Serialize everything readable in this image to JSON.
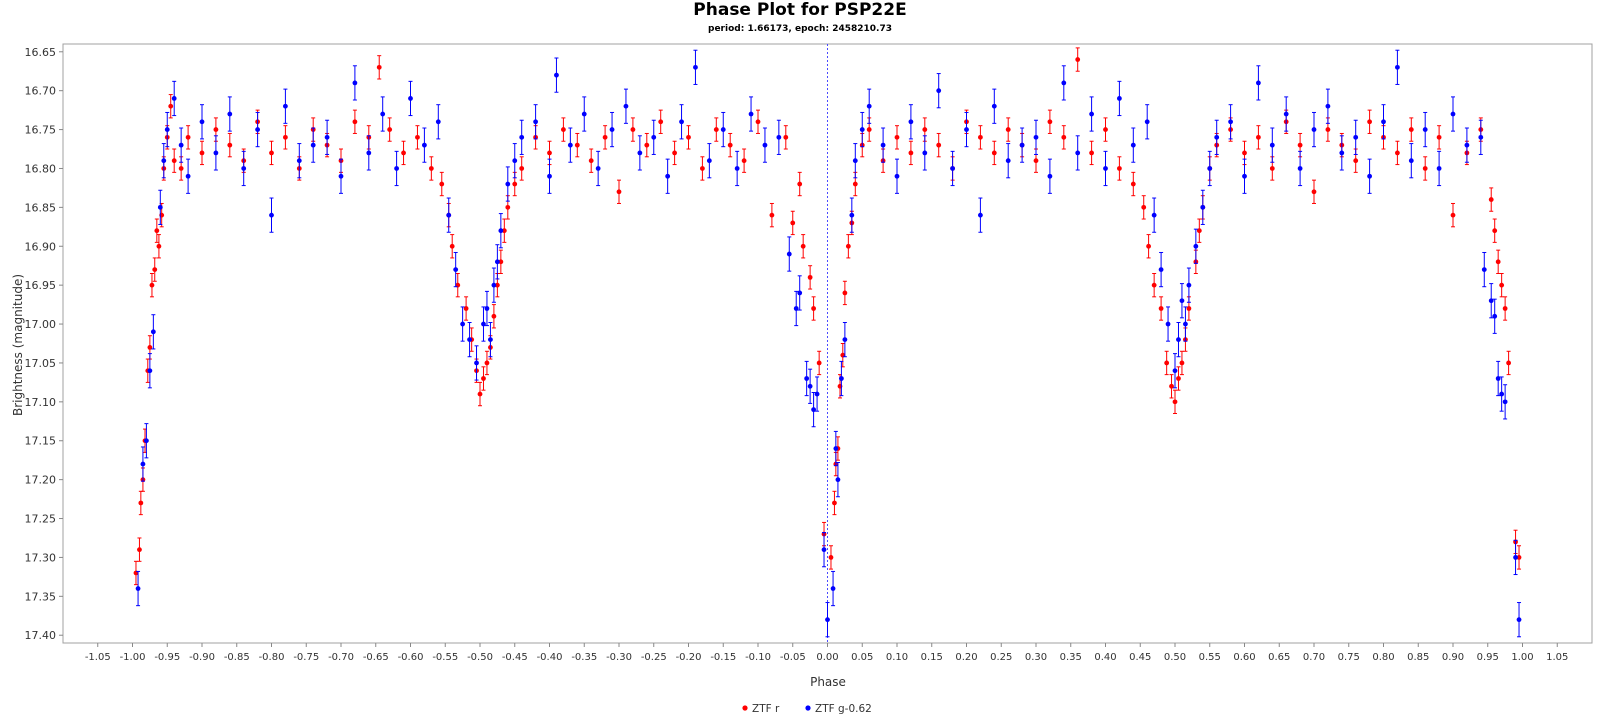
{
  "chart_data": {
    "type": "scatter",
    "title": "Phase Plot for PSP22E",
    "subtitle": "period: 1.66173, epoch: 2458210.73",
    "xlabel": "Phase",
    "ylabel": "Brightness (magnitude)",
    "xlim": [
      -1.1,
      1.1
    ],
    "ylim": [
      16.64,
      17.41
    ],
    "y_inverted": true,
    "grid": false,
    "legend_position": "bottom-center",
    "x_ticks": [
      "-1.05",
      "-1.00",
      "-0.95",
      "-0.90",
      "-0.85",
      "-0.80",
      "-0.75",
      "-0.70",
      "-0.65",
      "-0.60",
      "-0.55",
      "-0.50",
      "-0.45",
      "-0.40",
      "-0.35",
      "-0.30",
      "-0.25",
      "-0.20",
      "-0.15",
      "-0.10",
      "-0.05",
      "0.00",
      "0.05",
      "0.10",
      "0.15",
      "0.20",
      "0.25",
      "0.30",
      "0.35",
      "0.40",
      "0.45",
      "0.50",
      "0.55",
      "0.60",
      "0.65",
      "0.70",
      "0.75",
      "0.80",
      "0.85",
      "0.90",
      "0.95",
      "1.00",
      "1.05"
    ],
    "y_ticks": [
      "16.65",
      "16.70",
      "16.75",
      "16.80",
      "16.85",
      "16.90",
      "16.95",
      "17.00",
      "17.05",
      "17.10",
      "17.15",
      "17.20",
      "17.25",
      "17.30",
      "17.35",
      "17.40"
    ],
    "reference_line": {
      "x": 0.0,
      "style": "dotted",
      "color": "#4a4aff"
    },
    "series": [
      {
        "name": "ZTF r",
        "color": "#ff0000",
        "error_typ": 0.015,
        "points": [
          [
            -0.995,
            17.32
          ],
          [
            -0.99,
            17.29
          ],
          [
            -0.988,
            17.23
          ],
          [
            -0.985,
            17.2
          ],
          [
            -0.982,
            17.15
          ],
          [
            -0.978,
            17.06
          ],
          [
            -0.975,
            17.03
          ],
          [
            -0.972,
            16.95
          ],
          [
            -0.968,
            16.93
          ],
          [
            -0.965,
            16.88
          ],
          [
            -0.962,
            16.9
          ],
          [
            -0.958,
            16.86
          ],
          [
            -0.955,
            16.8
          ],
          [
            -0.95,
            16.76
          ],
          [
            -0.945,
            16.72
          ],
          [
            -0.94,
            16.79
          ],
          [
            -0.93,
            16.8
          ],
          [
            -0.92,
            16.76
          ],
          [
            -0.9,
            16.78
          ],
          [
            -0.88,
            16.75
          ],
          [
            -0.86,
            16.77
          ],
          [
            -0.84,
            16.79
          ],
          [
            -0.82,
            16.74
          ],
          [
            -0.8,
            16.78
          ],
          [
            -0.78,
            16.76
          ],
          [
            -0.76,
            16.8
          ],
          [
            -0.74,
            16.75
          ],
          [
            -0.72,
            16.77
          ],
          [
            -0.7,
            16.79
          ],
          [
            -0.68,
            16.74
          ],
          [
            -0.66,
            16.76
          ],
          [
            -0.645,
            16.67
          ],
          [
            -0.63,
            16.75
          ],
          [
            -0.61,
            16.78
          ],
          [
            -0.59,
            16.76
          ],
          [
            -0.57,
            16.8
          ],
          [
            -0.555,
            16.82
          ],
          [
            -0.545,
            16.86
          ],
          [
            -0.54,
            16.9
          ],
          [
            -0.532,
            16.95
          ],
          [
            -0.52,
            16.98
          ],
          [
            -0.512,
            17.02
          ],
          [
            -0.505,
            17.06
          ],
          [
            -0.5,
            17.09
          ],
          [
            -0.495,
            17.07
          ],
          [
            -0.49,
            17.05
          ],
          [
            -0.485,
            17.03
          ],
          [
            -0.48,
            16.99
          ],
          [
            -0.475,
            16.95
          ],
          [
            -0.47,
            16.92
          ],
          [
            -0.465,
            16.88
          ],
          [
            -0.46,
            16.85
          ],
          [
            -0.45,
            16.82
          ],
          [
            -0.44,
            16.8
          ],
          [
            -0.42,
            16.76
          ],
          [
            -0.4,
            16.78
          ],
          [
            -0.38,
            16.75
          ],
          [
            -0.36,
            16.77
          ],
          [
            -0.34,
            16.79
          ],
          [
            -0.32,
            16.76
          ],
          [
            -0.3,
            16.83
          ],
          [
            -0.28,
            16.75
          ],
          [
            -0.26,
            16.77
          ],
          [
            -0.24,
            16.74
          ],
          [
            -0.22,
            16.78
          ],
          [
            -0.2,
            16.76
          ],
          [
            -0.18,
            16.8
          ],
          [
            -0.16,
            16.75
          ],
          [
            -0.14,
            16.77
          ],
          [
            -0.12,
            16.79
          ],
          [
            -0.1,
            16.74
          ],
          [
            -0.08,
            16.86
          ],
          [
            -0.06,
            16.76
          ],
          [
            -0.05,
            16.87
          ],
          [
            -0.04,
            16.82
          ],
          [
            -0.035,
            16.9
          ],
          [
            -0.025,
            16.94
          ],
          [
            -0.02,
            16.98
          ],
          [
            -0.012,
            17.05
          ],
          [
            -0.005,
            17.27
          ],
          [
            0.005,
            17.3
          ],
          [
            0.01,
            17.23
          ],
          [
            0.012,
            17.18
          ],
          [
            0.015,
            17.16
          ],
          [
            0.018,
            17.08
          ],
          [
            0.022,
            17.04
          ],
          [
            0.025,
            16.96
          ],
          [
            0.03,
            16.9
          ],
          [
            0.035,
            16.87
          ],
          [
            0.04,
            16.82
          ],
          [
            0.05,
            16.77
          ],
          [
            0.06,
            16.75
          ],
          [
            0.08,
            16.79
          ],
          [
            0.1,
            16.76
          ],
          [
            0.12,
            16.78
          ],
          [
            0.14,
            16.75
          ],
          [
            0.16,
            16.77
          ],
          [
            0.18,
            16.8
          ],
          [
            0.2,
            16.74
          ],
          [
            0.22,
            16.76
          ],
          [
            0.24,
            16.78
          ],
          [
            0.26,
            16.75
          ],
          [
            0.28,
            16.77
          ],
          [
            0.3,
            16.79
          ],
          [
            0.32,
            16.74
          ],
          [
            0.34,
            16.76
          ],
          [
            0.36,
            16.66
          ],
          [
            0.38,
            16.78
          ],
          [
            0.4,
            16.75
          ],
          [
            0.42,
            16.8
          ],
          [
            0.44,
            16.82
          ],
          [
            0.455,
            16.85
          ],
          [
            0.462,
            16.9
          ],
          [
            0.47,
            16.95
          ],
          [
            0.48,
            16.98
          ],
          [
            0.488,
            17.05
          ],
          [
            0.495,
            17.08
          ],
          [
            0.5,
            17.1
          ],
          [
            0.505,
            17.07
          ],
          [
            0.51,
            17.05
          ],
          [
            0.515,
            17.02
          ],
          [
            0.52,
            16.98
          ],
          [
            0.53,
            16.92
          ],
          [
            0.535,
            16.88
          ],
          [
            0.54,
            16.85
          ],
          [
            0.55,
            16.8
          ],
          [
            0.56,
            16.77
          ],
          [
            0.58,
            16.75
          ],
          [
            0.6,
            16.78
          ],
          [
            0.62,
            16.76
          ],
          [
            0.64,
            16.8
          ],
          [
            0.66,
            16.74
          ],
          [
            0.68,
            16.77
          ],
          [
            0.7,
            16.83
          ],
          [
            0.72,
            16.75
          ],
          [
            0.74,
            16.77
          ],
          [
            0.76,
            16.79
          ],
          [
            0.78,
            16.74
          ],
          [
            0.8,
            16.76
          ],
          [
            0.82,
            16.78
          ],
          [
            0.84,
            16.75
          ],
          [
            0.86,
            16.8
          ],
          [
            0.88,
            16.76
          ],
          [
            0.9,
            16.86
          ],
          [
            0.92,
            16.78
          ],
          [
            0.94,
            16.75
          ],
          [
            0.955,
            16.84
          ],
          [
            0.96,
            16.88
          ],
          [
            0.965,
            16.92
          ],
          [
            0.97,
            16.95
          ],
          [
            0.975,
            16.98
          ],
          [
            0.98,
            17.05
          ],
          [
            0.99,
            17.28
          ],
          [
            0.995,
            17.3
          ]
        ]
      },
      {
        "name": "ZTF g-0.62",
        "color": "#0000ff",
        "error_typ": 0.022,
        "points": [
          [
            -0.992,
            17.34
          ],
          [
            -0.985,
            17.18
          ],
          [
            -0.98,
            17.15
          ],
          [
            -0.975,
            17.06
          ],
          [
            -0.97,
            17.01
          ],
          [
            -0.96,
            16.85
          ],
          [
            -0.955,
            16.79
          ],
          [
            -0.95,
            16.75
          ],
          [
            -0.94,
            16.71
          ],
          [
            -0.93,
            16.77
          ],
          [
            -0.92,
            16.81
          ],
          [
            -0.9,
            16.74
          ],
          [
            -0.88,
            16.78
          ],
          [
            -0.86,
            16.73
          ],
          [
            -0.84,
            16.8
          ],
          [
            -0.82,
            16.75
          ],
          [
            -0.8,
            16.86
          ],
          [
            -0.78,
            16.72
          ],
          [
            -0.76,
            16.79
          ],
          [
            -0.74,
            16.77
          ],
          [
            -0.72,
            16.76
          ],
          [
            -0.7,
            16.81
          ],
          [
            -0.68,
            16.69
          ],
          [
            -0.66,
            16.78
          ],
          [
            -0.64,
            16.73
          ],
          [
            -0.62,
            16.8
          ],
          [
            -0.6,
            16.71
          ],
          [
            -0.58,
            16.77
          ],
          [
            -0.56,
            16.74
          ],
          [
            -0.545,
            16.86
          ],
          [
            -0.535,
            16.93
          ],
          [
            -0.525,
            17.0
          ],
          [
            -0.515,
            17.02
          ],
          [
            -0.505,
            17.05
          ],
          [
            -0.495,
            17.0
          ],
          [
            -0.49,
            16.98
          ],
          [
            -0.485,
            17.02
          ],
          [
            -0.48,
            16.95
          ],
          [
            -0.475,
            16.92
          ],
          [
            -0.47,
            16.88
          ],
          [
            -0.46,
            16.82
          ],
          [
            -0.45,
            16.79
          ],
          [
            -0.44,
            16.76
          ],
          [
            -0.42,
            16.74
          ],
          [
            -0.4,
            16.81
          ],
          [
            -0.39,
            16.68
          ],
          [
            -0.37,
            16.77
          ],
          [
            -0.35,
            16.73
          ],
          [
            -0.33,
            16.8
          ],
          [
            -0.31,
            16.75
          ],
          [
            -0.29,
            16.72
          ],
          [
            -0.27,
            16.78
          ],
          [
            -0.25,
            16.76
          ],
          [
            -0.23,
            16.81
          ],
          [
            -0.21,
            16.74
          ],
          [
            -0.19,
            16.67
          ],
          [
            -0.17,
            16.79
          ],
          [
            -0.15,
            16.75
          ],
          [
            -0.13,
            16.8
          ],
          [
            -0.11,
            16.73
          ],
          [
            -0.09,
            16.77
          ],
          [
            -0.07,
            16.76
          ],
          [
            -0.055,
            16.91
          ],
          [
            -0.045,
            16.98
          ],
          [
            -0.04,
            16.96
          ],
          [
            -0.03,
            17.07
          ],
          [
            -0.025,
            17.08
          ],
          [
            -0.02,
            17.11
          ],
          [
            -0.015,
            17.09
          ],
          [
            -0.005,
            17.29
          ],
          [
            0.0,
            17.38
          ],
          [
            0.008,
            17.34
          ],
          [
            0.012,
            17.16
          ],
          [
            0.015,
            17.2
          ],
          [
            0.02,
            17.07
          ],
          [
            0.025,
            17.02
          ],
          [
            0.035,
            16.86
          ],
          [
            0.04,
            16.79
          ],
          [
            0.05,
            16.75
          ],
          [
            0.06,
            16.72
          ],
          [
            0.08,
            16.77
          ],
          [
            0.1,
            16.81
          ],
          [
            0.12,
            16.74
          ],
          [
            0.14,
            16.78
          ],
          [
            0.16,
            16.7
          ],
          [
            0.18,
            16.8
          ],
          [
            0.2,
            16.75
          ],
          [
            0.22,
            16.86
          ],
          [
            0.24,
            16.72
          ],
          [
            0.26,
            16.79
          ],
          [
            0.28,
            16.77
          ],
          [
            0.3,
            16.76
          ],
          [
            0.32,
            16.81
          ],
          [
            0.34,
            16.69
          ],
          [
            0.36,
            16.78
          ],
          [
            0.38,
            16.73
          ],
          [
            0.4,
            16.8
          ],
          [
            0.42,
            16.71
          ],
          [
            0.44,
            16.77
          ],
          [
            0.46,
            16.74
          ],
          [
            0.47,
            16.86
          ],
          [
            0.48,
            16.93
          ],
          [
            0.49,
            17.0
          ],
          [
            0.5,
            17.06
          ],
          [
            0.505,
            17.02
          ],
          [
            0.51,
            16.97
          ],
          [
            0.515,
            17.0
          ],
          [
            0.52,
            16.95
          ],
          [
            0.53,
            16.9
          ],
          [
            0.54,
            16.85
          ],
          [
            0.55,
            16.8
          ],
          [
            0.56,
            16.76
          ],
          [
            0.58,
            16.74
          ],
          [
            0.6,
            16.81
          ],
          [
            0.62,
            16.69
          ],
          [
            0.64,
            16.77
          ],
          [
            0.66,
            16.73
          ],
          [
            0.68,
            16.8
          ],
          [
            0.7,
            16.75
          ],
          [
            0.72,
            16.72
          ],
          [
            0.74,
            16.78
          ],
          [
            0.76,
            16.76
          ],
          [
            0.78,
            16.81
          ],
          [
            0.8,
            16.74
          ],
          [
            0.82,
            16.67
          ],
          [
            0.84,
            16.79
          ],
          [
            0.86,
            16.75
          ],
          [
            0.88,
            16.8
          ],
          [
            0.9,
            16.73
          ],
          [
            0.92,
            16.77
          ],
          [
            0.94,
            16.76
          ],
          [
            0.945,
            16.93
          ],
          [
            0.955,
            16.97
          ],
          [
            0.96,
            16.99
          ],
          [
            0.965,
            17.07
          ],
          [
            0.97,
            17.09
          ],
          [
            0.975,
            17.1
          ],
          [
            0.99,
            17.3
          ],
          [
            0.995,
            17.38
          ]
        ]
      }
    ]
  }
}
